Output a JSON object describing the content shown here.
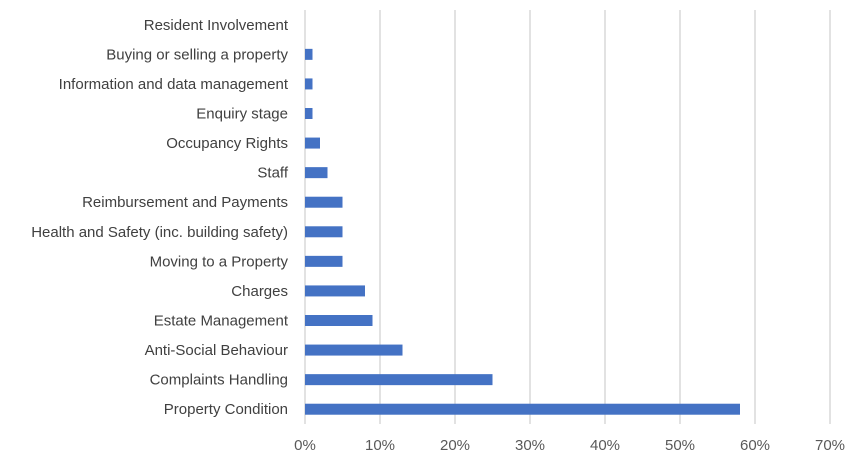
{
  "chart_data": {
    "type": "bar",
    "orientation": "horizontal",
    "categories": [
      "Property Condition",
      "Complaints Handling",
      "Anti-Social Behaviour",
      "Estate Management",
      "Charges",
      "Moving to a Property",
      "Health and Safety (inc. building safety)",
      "Reimbursement and Payments",
      "Staff",
      "Occupancy Rights",
      "Enquiry stage",
      "Information and data management",
      "Buying or selling a property",
      "Resident Involvement"
    ],
    "values": [
      58,
      25,
      13,
      9,
      8,
      5,
      5,
      5,
      3,
      2,
      1,
      1,
      1,
      0
    ],
    "value_unit": "%",
    "xlim": [
      0,
      70
    ],
    "x_ticks": [
      "0%",
      "10%",
      "20%",
      "30%",
      "40%",
      "50%",
      "60%",
      "70%"
    ],
    "title": "",
    "xlabel": "",
    "ylabel": "",
    "grid": "vertical",
    "legend": "none",
    "bar_color": "#4472C4"
  }
}
